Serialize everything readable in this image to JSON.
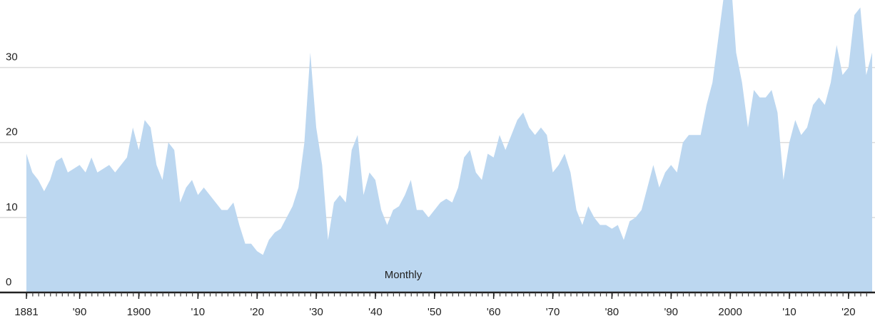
{
  "chart_data": {
    "type": "area",
    "annotation": "Monthly",
    "color": "#bcd7f0",
    "grid": true,
    "xlim": [
      1881,
      2024
    ],
    "ylim": [
      0,
      39
    ],
    "yticks": [
      0,
      10,
      20,
      30
    ],
    "xticks": [
      1881,
      {
        "value": 1890,
        "label": "'90"
      },
      1900,
      {
        "value": 1910,
        "label": "'10"
      },
      {
        "value": 1920,
        "label": "'20"
      },
      {
        "value": 1930,
        "label": "'30"
      },
      {
        "value": 1940,
        "label": "'40"
      },
      {
        "value": 1950,
        "label": "'50"
      },
      {
        "value": 1960,
        "label": "'60"
      },
      {
        "value": 1970,
        "label": "'70"
      },
      {
        "value": 1980,
        "label": "'80"
      },
      {
        "value": 1990,
        "label": "'90"
      },
      2000,
      {
        "value": 2010,
        "label": "'10"
      },
      {
        "value": 2020,
        "label": "'20"
      }
    ],
    "x": [
      1881,
      1882,
      1883,
      1884,
      1885,
      1886,
      1887,
      1888,
      1889,
      1890,
      1891,
      1892,
      1893,
      1894,
      1895,
      1896,
      1897,
      1898,
      1899,
      1900,
      1901,
      1902,
      1903,
      1904,
      1905,
      1906,
      1907,
      1908,
      1909,
      1910,
      1911,
      1912,
      1913,
      1914,
      1915,
      1916,
      1917,
      1918,
      1919,
      1920,
      1921,
      1922,
      1923,
      1924,
      1925,
      1926,
      1927,
      1928,
      1929,
      1930,
      1931,
      1932,
      1933,
      1934,
      1935,
      1936,
      1937,
      1938,
      1939,
      1940,
      1941,
      1942,
      1943,
      1944,
      1945,
      1946,
      1947,
      1948,
      1949,
      1950,
      1951,
      1952,
      1953,
      1954,
      1955,
      1956,
      1957,
      1958,
      1959,
      1960,
      1961,
      1962,
      1963,
      1964,
      1965,
      1966,
      1967,
      1968,
      1969,
      1970,
      1971,
      1972,
      1973,
      1974,
      1975,
      1976,
      1977,
      1978,
      1979,
      1980,
      1981,
      1982,
      1983,
      1984,
      1985,
      1986,
      1987,
      1988,
      1989,
      1990,
      1991,
      1992,
      1993,
      1994,
      1995,
      1996,
      1997,
      1998,
      1999,
      2000,
      2001,
      2002,
      2003,
      2004,
      2005,
      2006,
      2007,
      2008,
      2009,
      2010,
      2011,
      2012,
      2013,
      2014,
      2015,
      2016,
      2017,
      2018,
      2019,
      2020,
      2021,
      2022,
      2023,
      2024
    ],
    "values": [
      18.5,
      16,
      15,
      13.5,
      15,
      17.5,
      18,
      16,
      16.5,
      17,
      16,
      18,
      16,
      16.5,
      17,
      16,
      17,
      18,
      22,
      19,
      23,
      22,
      17,
      15,
      20,
      19,
      12,
      14,
      15,
      13,
      14,
      13,
      12,
      11,
      11,
      12,
      9,
      6.5,
      6.5,
      5.5,
      5,
      7,
      8,
      8.5,
      10,
      11.5,
      14,
      20,
      32,
      22,
      17,
      7,
      12,
      13,
      12,
      19,
      21,
      13,
      16,
      15,
      11,
      9,
      11,
      11.5,
      13,
      15,
      11,
      11,
      10,
      11,
      12,
      12.5,
      12,
      14,
      18,
      19,
      16,
      15,
      18.5,
      18,
      21,
      19,
      21,
      23,
      24,
      22,
      21,
      22,
      21,
      16,
      17,
      18.5,
      16,
      11,
      9,
      11.5,
      10,
      9,
      9,
      8.5,
      9,
      7,
      9.5,
      10,
      11,
      14,
      17,
      14,
      16,
      17,
      16,
      20,
      21,
      21,
      21,
      25,
      28,
      34,
      40,
      43,
      32,
      28,
      22,
      27,
      26,
      26,
      27,
      24,
      15,
      20,
      23,
      21,
      22,
      25,
      26,
      25,
      28,
      33,
      29,
      30,
      37,
      38,
      29,
      32
    ]
  }
}
